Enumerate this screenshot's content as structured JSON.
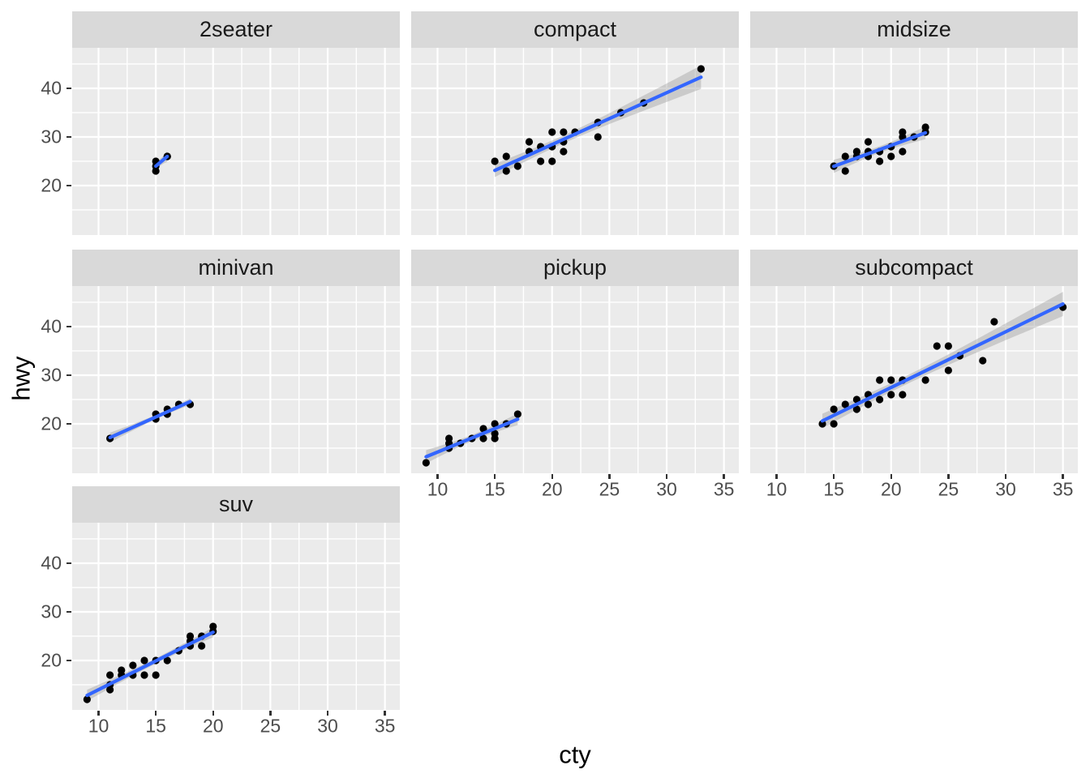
{
  "chart_data": {
    "type": "scatter",
    "title": "",
    "xlabel": "cty",
    "ylabel": "hwy",
    "x_ticks": [
      10,
      15,
      20,
      25,
      30,
      35
    ],
    "y_ticks": [
      20,
      30,
      40
    ],
    "x_minor": [
      12.5,
      17.5,
      22.5,
      27.5,
      32.5
    ],
    "y_minor": [
      15,
      25,
      35,
      45
    ],
    "xlim": [
      7.7,
      36.3
    ],
    "ylim": [
      9.83,
      48.33
    ],
    "grid": "white major+minor on grey panel",
    "legend_position": "none",
    "smooth": {
      "method": "lm",
      "level": 0.95
    },
    "facets": [
      {
        "label": "2seater",
        "points": [
          [
            15,
            23
          ],
          [
            15,
            24
          ],
          [
            15,
            25
          ],
          [
            16,
            26
          ],
          [
            16,
            26
          ]
        ]
      },
      {
        "label": "compact",
        "points": [
          [
            15,
            25
          ],
          [
            16,
            26
          ],
          [
            16,
            23
          ],
          [
            17,
            24
          ],
          [
            18,
            29
          ],
          [
            18,
            27
          ],
          [
            19,
            28
          ],
          [
            19,
            25
          ],
          [
            20,
            31
          ],
          [
            20,
            28
          ],
          [
            20,
            25
          ],
          [
            21,
            31
          ],
          [
            21,
            29
          ],
          [
            21,
            27
          ],
          [
            22,
            31
          ],
          [
            24,
            33
          ],
          [
            24,
            30
          ],
          [
            26,
            35
          ],
          [
            28,
            37
          ],
          [
            33,
            44
          ]
        ]
      },
      {
        "label": "midsize",
        "points": [
          [
            15,
            24
          ],
          [
            16,
            23
          ],
          [
            16,
            26
          ],
          [
            17,
            27
          ],
          [
            17,
            26
          ],
          [
            18,
            29
          ],
          [
            18,
            27
          ],
          [
            18,
            26
          ],
          [
            19,
            27
          ],
          [
            19,
            25
          ],
          [
            20,
            28
          ],
          [
            20,
            26
          ],
          [
            21,
            31
          ],
          [
            21,
            30
          ],
          [
            21,
            27
          ],
          [
            22,
            30
          ],
          [
            23,
            32
          ],
          [
            23,
            31
          ]
        ]
      },
      {
        "label": "minivan",
        "points": [
          [
            11,
            17
          ],
          [
            15,
            21
          ],
          [
            15,
            22
          ],
          [
            16,
            22
          ],
          [
            16,
            23
          ],
          [
            17,
            24
          ],
          [
            18,
            24
          ]
        ]
      },
      {
        "label": "pickup",
        "points": [
          [
            9,
            12
          ],
          [
            11,
            15
          ],
          [
            11,
            16
          ],
          [
            11,
            17
          ],
          [
            12,
            16
          ],
          [
            13,
            17
          ],
          [
            14,
            17
          ],
          [
            14,
            19
          ],
          [
            15,
            17
          ],
          [
            15,
            18
          ],
          [
            15,
            20
          ],
          [
            16,
            20
          ],
          [
            17,
            22
          ]
        ]
      },
      {
        "label": "subcompact",
        "points": [
          [
            14,
            20
          ],
          [
            15,
            20
          ],
          [
            15,
            23
          ],
          [
            16,
            24
          ],
          [
            17,
            25
          ],
          [
            17,
            23
          ],
          [
            18,
            26
          ],
          [
            18,
            24
          ],
          [
            19,
            29
          ],
          [
            19,
            25
          ],
          [
            20,
            29
          ],
          [
            20,
            26
          ],
          [
            21,
            29
          ],
          [
            21,
            26
          ],
          [
            23,
            29
          ],
          [
            24,
            36
          ],
          [
            25,
            36
          ],
          [
            25,
            31
          ],
          [
            26,
            34
          ],
          [
            28,
            33
          ],
          [
            29,
            41
          ],
          [
            35,
            44
          ]
        ]
      },
      {
        "label": "suv",
        "points": [
          [
            9,
            12
          ],
          [
            11,
            14
          ],
          [
            11,
            15
          ],
          [
            11,
            17
          ],
          [
            12,
            17
          ],
          [
            12,
            18
          ],
          [
            13,
            17
          ],
          [
            13,
            19
          ],
          [
            14,
            17
          ],
          [
            14,
            20
          ],
          [
            15,
            17
          ],
          [
            15,
            20
          ],
          [
            16,
            20
          ],
          [
            17,
            22
          ],
          [
            18,
            23
          ],
          [
            18,
            24
          ],
          [
            18,
            25
          ],
          [
            19,
            23
          ],
          [
            19,
            25
          ],
          [
            20,
            26
          ],
          [
            20,
            27
          ]
        ]
      }
    ]
  },
  "style": {
    "panel_bg": "#EBEBEB",
    "strip_bg": "#D9D9D9",
    "grid_color": "#FFFFFF",
    "point_color": "#000000",
    "line_color": "#3366FF",
    "ribbon_color": "#999999",
    "axis_text_color": "#4D4D4D",
    "strip_text_color": "#1A1A1A",
    "tick_mark_color": "#333333"
  }
}
